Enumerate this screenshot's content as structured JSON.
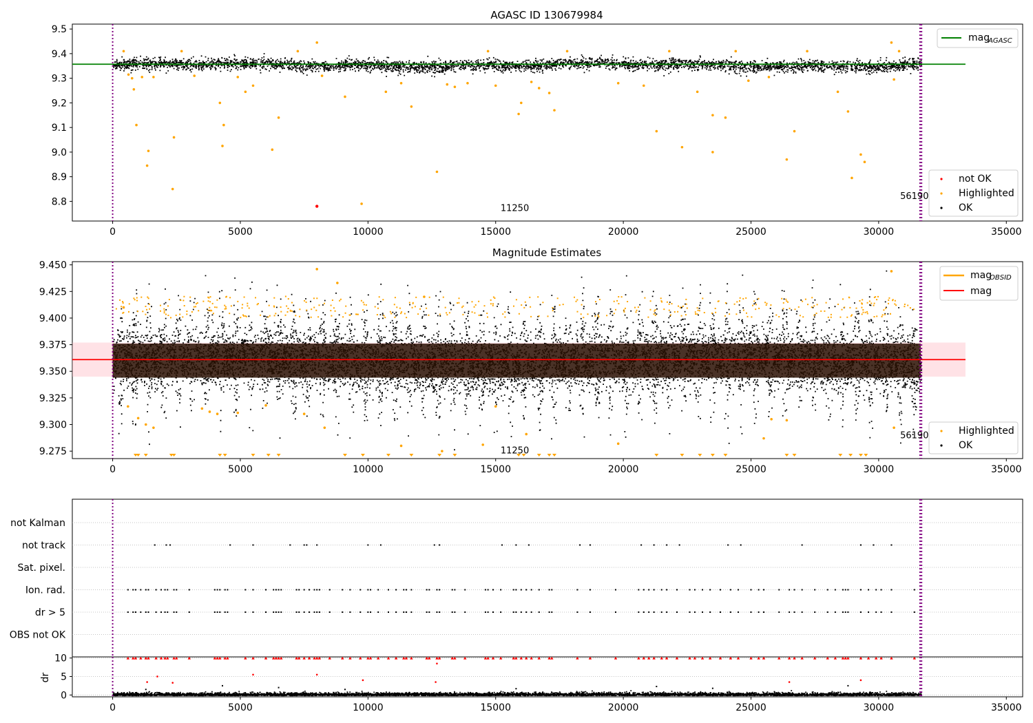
{
  "colors": {
    "ok": "#000000",
    "highlighted": "#ffa500",
    "not_ok": "#ff0000",
    "agasc_line": "#008000",
    "mag_line": "#ff0000",
    "mag_band": "#ffb6c1",
    "obs_boundary": "#800080",
    "grid": "#b0b0b0"
  },
  "chart_data": [
    {
      "type": "scatter",
      "title": "AGASC ID 130679984",
      "xlim": [
        -1580,
        35640
      ],
      "ylim": [
        8.72,
        9.52
      ],
      "xticks": [
        0,
        5000,
        10000,
        15000,
        20000,
        25000,
        30000,
        35000
      ],
      "xtick_labels": [
        "0",
        "5000",
        "10000",
        "15000",
        "20000",
        "25000",
        "30000",
        "35000"
      ],
      "yticks": [
        8.8,
        8.9,
        9.0,
        9.1,
        9.2,
        9.3,
        9.4,
        9.5
      ],
      "ytick_labels": [
        "8.8",
        "8.9",
        "9.0",
        "9.1",
        "9.2",
        "9.3",
        "9.4",
        "9.5"
      ],
      "obs_boundaries": [
        0,
        31620,
        31680
      ],
      "obs_labels": [
        {
          "x": 15750,
          "y": 8.76,
          "text": "11250"
        },
        {
          "x": 31400,
          "y": 8.81,
          "text": "56190"
        }
      ],
      "reference_lines": [
        {
          "name": "mag_AGASC",
          "y": 9.357,
          "x": [
            -1580,
            33400
          ],
          "color": "#008000"
        }
      ],
      "ok_band": {
        "center": 9.355,
        "half_width": 0.022
      },
      "highlighted_points": [
        [
          430,
          9.41
        ],
        [
          620,
          9.315
        ],
        [
          760,
          9.3
        ],
        [
          830,
          9.255
        ],
        [
          930,
          9.11
        ],
        [
          1150,
          9.305
        ],
        [
          1350,
          8.945
        ],
        [
          1400,
          9.005
        ],
        [
          1600,
          9.305
        ],
        [
          2350,
          8.85
        ],
        [
          2400,
          9.06
        ],
        [
          2700,
          9.41
        ],
        [
          3200,
          9.31
        ],
        [
          4200,
          9.2
        ],
        [
          4300,
          9.025
        ],
        [
          4350,
          9.11
        ],
        [
          4900,
          9.305
        ],
        [
          5200,
          9.245
        ],
        [
          5500,
          9.27
        ],
        [
          6250,
          9.01
        ],
        [
          6500,
          9.14
        ],
        [
          7250,
          9.41
        ],
        [
          8000,
          9.445
        ],
        [
          8200,
          9.31
        ],
        [
          9100,
          9.225
        ],
        [
          9750,
          8.79
        ],
        [
          10700,
          9.245
        ],
        [
          11300,
          9.28
        ],
        [
          11700,
          9.185
        ],
        [
          12700,
          8.92
        ],
        [
          13100,
          9.275
        ],
        [
          13400,
          9.265
        ],
        [
          13900,
          9.28
        ],
        [
          14700,
          9.41
        ],
        [
          15000,
          9.27
        ],
        [
          15900,
          9.155
        ],
        [
          16000,
          9.2
        ],
        [
          16400,
          9.285
        ],
        [
          16700,
          9.26
        ],
        [
          17100,
          9.24
        ],
        [
          17300,
          9.17
        ],
        [
          17800,
          9.41
        ],
        [
          19800,
          9.28
        ],
        [
          20800,
          9.27
        ],
        [
          21300,
          9.085
        ],
        [
          21800,
          9.41
        ],
        [
          22300,
          9.02
        ],
        [
          22900,
          9.245
        ],
        [
          23500,
          9.15
        ],
        [
          23500,
          9.0
        ],
        [
          24000,
          9.14
        ],
        [
          24400,
          9.41
        ],
        [
          24900,
          9.29
        ],
        [
          25700,
          9.305
        ],
        [
          26400,
          8.97
        ],
        [
          26700,
          9.085
        ],
        [
          27200,
          9.41
        ],
        [
          28400,
          9.245
        ],
        [
          28800,
          9.165
        ],
        [
          28950,
          8.895
        ],
        [
          29300,
          8.99
        ],
        [
          29450,
          8.96
        ],
        [
          30500,
          9.445
        ],
        [
          30600,
          9.295
        ],
        [
          30800,
          9.41
        ]
      ],
      "not_ok_points": [
        [
          8000,
          8.78
        ]
      ],
      "legend": {
        "position": "upper right",
        "entries": [
          "mag",
          "AGASC"
        ]
      },
      "legend2": {
        "position": "lower right",
        "entries": [
          "not OK",
          "Highlighted",
          "OK"
        ]
      }
    },
    {
      "type": "scatter",
      "title": "Magnitude Estimates",
      "xlim": [
        -1580,
        35640
      ],
      "ylim": [
        9.268,
        9.453
      ],
      "xticks": [
        0,
        5000,
        10000,
        15000,
        20000,
        25000,
        30000,
        35000
      ],
      "xtick_labels": [
        "0",
        "5000",
        "10000",
        "15000",
        "20000",
        "25000",
        "30000",
        "35000"
      ],
      "yticks": [
        9.275,
        9.3,
        9.325,
        9.35,
        9.375,
        9.4,
        9.425,
        9.45
      ],
      "ytick_labels": [
        "9.275",
        "9.300",
        "9.325",
        "9.350",
        "9.375",
        "9.400",
        "9.425",
        "9.450"
      ],
      "obs_boundaries": [
        0,
        31620,
        31680
      ],
      "obs_labels": [
        {
          "x": 15750,
          "y": 9.273,
          "text": "11250"
        },
        {
          "x": 31400,
          "y": 9.287,
          "text": "56190"
        }
      ],
      "reference_lines": [
        {
          "name": "mag",
          "y": 9.361,
          "x": [
            -1580,
            33400
          ],
          "color": "#ff0000"
        }
      ],
      "mag_band": {
        "y0": 9.345,
        "y1": 9.377,
        "x": [
          -1580,
          33400
        ]
      },
      "ok_band": {
        "center": 9.36,
        "half_width": 0.016
      },
      "highlighted_points": [
        [
          430,
          9.41
        ],
        [
          600,
          9.317
        ],
        [
          1000,
          9.306
        ],
        [
          1300,
          9.3
        ],
        [
          1600,
          9.297
        ],
        [
          3500,
          9.315
        ],
        [
          3800,
          9.312
        ],
        [
          4100,
          9.31
        ],
        [
          4900,
          9.311
        ],
        [
          6000,
          9.318
        ],
        [
          7500,
          9.31
        ],
        [
          8000,
          9.446
        ],
        [
          8300,
          9.297
        ],
        [
          8800,
          9.433
        ],
        [
          11300,
          9.28
        ],
        [
          12200,
          9.42
        ],
        [
          12900,
          9.275
        ],
        [
          14500,
          9.281
        ],
        [
          15000,
          9.317
        ],
        [
          16200,
          9.291
        ],
        [
          19800,
          9.282
        ],
        [
          25500,
          9.287
        ],
        [
          25800,
          9.305
        ],
        [
          26400,
          9.304
        ],
        [
          30500,
          9.444
        ],
        [
          30600,
          9.297
        ]
      ],
      "clipped_markers_x": [
        900,
        1000,
        1300,
        2300,
        2400,
        4200,
        4400,
        5500,
        6100,
        6500,
        9100,
        9800,
        10800,
        11700,
        12800,
        13400,
        15900,
        16100,
        16700,
        17100,
        17300,
        21300,
        22300,
        23000,
        23500,
        24000,
        26400,
        26700,
        28500,
        28900,
        29300,
        29500
      ],
      "legend": {
        "position": "upper right",
        "entries": [
          "mag",
          "OBSID",
          "mag"
        ]
      },
      "legend2": {
        "position": "lower right",
        "entries": [
          "Highlighted",
          "OK"
        ]
      }
    },
    {
      "type": "scatter",
      "title": "",
      "xlim": [
        -1580,
        35640
      ],
      "categories": [
        "not Kalman",
        "not track",
        "Sat. pixel.",
        "Ion. rad.",
        "dr > 5",
        "OBS not OK"
      ],
      "obs_boundaries": [
        0,
        31620,
        31680
      ],
      "flag_x": {
        "not Kalman": [],
        "not track": [
          1650,
          2100,
          2250,
          4600,
          5500,
          6950,
          7500,
          7600,
          8000,
          10000,
          10500,
          12600,
          12800,
          15250,
          15800,
          16300,
          18300,
          18700,
          20700,
          21200,
          21700,
          22200,
          24100,
          24600,
          27000,
          29300,
          29800,
          30500
        ],
        "Sat. pixel.": [],
        "Ion. rad.": [
          600,
          800,
          900,
          1100,
          1300,
          1400,
          1700,
          1900,
          2050,
          2150,
          2400,
          2500,
          3000,
          4000,
          4100,
          4200,
          4400,
          4500,
          5200,
          5500,
          6000,
          6300,
          6400,
          6500,
          6600,
          7200,
          7300,
          7500,
          7700,
          7900,
          8000,
          8100,
          8500,
          9000,
          9300,
          9700,
          10000,
          10100,
          10400,
          10800,
          11100,
          11400,
          11500,
          11700,
          12300,
          12400,
          12700,
          12800,
          13300,
          13400,
          13800,
          14600,
          14700,
          14900,
          15200,
          15700,
          15800,
          16000,
          16200,
          16400,
          16700,
          17100,
          17200,
          18200,
          18700,
          19700,
          20600,
          20800,
          21000,
          21200,
          21500,
          21700,
          22100,
          22600,
          22800,
          23100,
          23400,
          23800,
          24200,
          24500,
          25000,
          25300,
          25500,
          26100,
          26500,
          26700,
          27000,
          27500,
          28000,
          28300,
          28600,
          28700,
          28800,
          29300,
          29600,
          29900,
          30100,
          30500,
          31400
        ],
        "dr > 5": [
          600,
          800,
          900,
          1100,
          1300,
          1400,
          1700,
          1900,
          2050,
          2150,
          2400,
          2500,
          3000,
          4000,
          4100,
          4200,
          4400,
          4500,
          5200,
          5500,
          6000,
          6300,
          6400,
          6500,
          6600,
          7200,
          7300,
          7500,
          7700,
          7900,
          8000,
          8100,
          8500,
          9000,
          9300,
          9700,
          10000,
          10100,
          10400,
          10800,
          11100,
          11400,
          11500,
          11700,
          12300,
          12400,
          12700,
          12800,
          13300,
          13400,
          13800,
          14600,
          14700,
          14900,
          15200,
          15700,
          15800,
          16000,
          16200,
          16400,
          16700,
          17100,
          17200,
          18200,
          18700,
          19700,
          20600,
          20800,
          21000,
          21200,
          21500,
          21700,
          22100,
          22600,
          22800,
          23100,
          23400,
          23800,
          24200,
          24500,
          25000,
          25300,
          25500,
          26100,
          26500,
          26700,
          27000,
          27500,
          28000,
          28300,
          28600,
          28700,
          28800,
          29300,
          29600,
          29900,
          30100,
          30500,
          31400
        ],
        "OBS not OK": []
      }
    },
    {
      "type": "scatter",
      "title": "",
      "xlim": [
        -1580,
        35640
      ],
      "ylim": [
        -0.5,
        10.3
      ],
      "ylabel": "dr",
      "xticks": [
        0,
        5000,
        10000,
        15000,
        20000,
        25000,
        30000,
        35000
      ],
      "xtick_labels": [
        "0",
        "5000",
        "10000",
        "15000",
        "20000",
        "25000",
        "30000",
        "35000"
      ],
      "yticks": [
        0,
        5,
        10
      ],
      "ytick_labels": [
        "0",
        "5",
        "10"
      ],
      "obs_boundaries": [
        0,
        31620,
        31680
      ],
      "capped_markers_x": [
        600,
        800,
        900,
        1100,
        1300,
        1400,
        1700,
        1900,
        2050,
        2150,
        2400,
        2500,
        3000,
        4000,
        4100,
        4200,
        4400,
        4500,
        5200,
        5500,
        6000,
        6300,
        6400,
        6500,
        6600,
        7200,
        7300,
        7500,
        7700,
        7900,
        8000,
        8100,
        8500,
        9000,
        9300,
        9700,
        10000,
        10100,
        10400,
        10800,
        11100,
        11400,
        11500,
        11700,
        12300,
        12400,
        12700,
        12800,
        13300,
        13400,
        13800,
        14600,
        14700,
        14900,
        15200,
        15700,
        15800,
        16000,
        16200,
        16400,
        16700,
        17100,
        17200,
        18200,
        18700,
        19700,
        20600,
        20800,
        21000,
        21200,
        21500,
        21700,
        22100,
        22600,
        22800,
        23100,
        23400,
        23800,
        24200,
        24500,
        25000,
        25300,
        25500,
        26100,
        26500,
        26700,
        27000,
        27500,
        28000,
        28300,
        28600,
        28700,
        28800,
        29300,
        29600,
        29900,
        30100,
        30500,
        31400
      ],
      "outlier_points": [
        [
          1350,
          3.5
        ],
        [
          1750,
          5.0
        ],
        [
          2350,
          3.3
        ],
        [
          5500,
          5.5
        ],
        [
          8000,
          5.5
        ],
        [
          9800,
          4.0
        ],
        [
          12650,
          3.5
        ],
        [
          12700,
          8.5
        ],
        [
          26500,
          3.5
        ],
        [
          29300,
          4.0
        ]
      ],
      "small_outliers": [
        [
          1300,
          1.5
        ],
        [
          4300,
          2.5
        ],
        [
          6500,
          2.0
        ],
        [
          9100,
          1.5
        ],
        [
          15800,
          1.7
        ],
        [
          21300,
          2.3
        ],
        [
          23500,
          1.8
        ],
        [
          28800,
          2.5
        ]
      ]
    }
  ]
}
